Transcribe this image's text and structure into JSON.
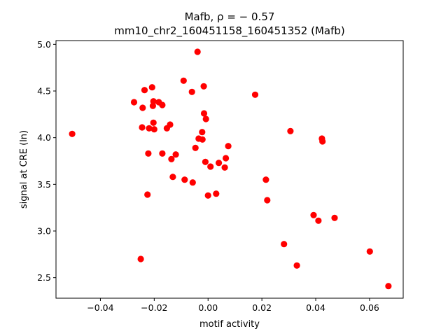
{
  "chart_data": {
    "type": "scatter",
    "title_line1": "Mafb, ρ = − 0.57",
    "title_line2": "mm10_chr2_160451158_160451352 (Mafb)",
    "xlabel": "motif activity",
    "ylabel": "signal at CRE (ln)",
    "xlim": [
      -0.0565,
      0.0725
    ],
    "ylim": [
      2.28,
      5.04
    ],
    "x_ticks": [
      -0.04,
      -0.02,
      0.0,
      0.02,
      0.04,
      0.06
    ],
    "x_tick_labels": [
      "−0.04",
      "−0.02",
      "0.00",
      "0.02",
      "0.04",
      "0.06"
    ],
    "y_ticks": [
      2.5,
      3.0,
      3.5,
      4.0,
      4.5,
      5.0
    ],
    "y_tick_labels": [
      "2.5",
      "3.0",
      "3.5",
      "4.0",
      "4.5",
      "5.0"
    ],
    "point_color": "#ff0000",
    "grid": false,
    "points": [
      {
        "x": -0.0505,
        "y": 4.04
      },
      {
        "x": -0.0275,
        "y": 4.38
      },
      {
        "x": -0.0245,
        "y": 4.11
      },
      {
        "x": -0.0243,
        "y": 4.32
      },
      {
        "x": -0.0236,
        "y": 4.51
      },
      {
        "x": -0.0225,
        "y": 3.39
      },
      {
        "x": -0.0222,
        "y": 3.83
      },
      {
        "x": -0.0219,
        "y": 4.1
      },
      {
        "x": -0.0208,
        "y": 4.54
      },
      {
        "x": -0.0205,
        "y": 4.34
      },
      {
        "x": -0.0203,
        "y": 4.16
      },
      {
        "x": -0.0203,
        "y": 4.39
      },
      {
        "x": -0.02,
        "y": 4.09
      },
      {
        "x": -0.025,
        "y": 2.7
      },
      {
        "x": -0.0183,
        "y": 4.38
      },
      {
        "x": -0.017,
        "y": 4.35
      },
      {
        "x": -0.017,
        "y": 3.83
      },
      {
        "x": -0.0153,
        "y": 4.1
      },
      {
        "x": -0.0141,
        "y": 4.14
      },
      {
        "x": -0.0136,
        "y": 3.77
      },
      {
        "x": -0.0131,
        "y": 3.58
      },
      {
        "x": -0.012,
        "y": 3.82
      },
      {
        "x": -0.0091,
        "y": 4.61
      },
      {
        "x": -0.0087,
        "y": 3.55
      },
      {
        "x": -0.006,
        "y": 4.49
      },
      {
        "x": -0.0057,
        "y": 3.52
      },
      {
        "x": -0.0047,
        "y": 3.89
      },
      {
        "x": -0.0039,
        "y": 4.92
      },
      {
        "x": -0.0035,
        "y": 3.99
      },
      {
        "x": -0.0022,
        "y": 4.06
      },
      {
        "x": -0.0021,
        "y": 3.98
      },
      {
        "x": -0.0016,
        "y": 4.55
      },
      {
        "x": -0.0015,
        "y": 4.26
      },
      {
        "x": -0.001,
        "y": 3.74
      },
      {
        "x": -0.0008,
        "y": 4.2
      },
      {
        "x": 0.0,
        "y": 3.38
      },
      {
        "x": 0.0009,
        "y": 3.69
      },
      {
        "x": 0.003,
        "y": 3.4
      },
      {
        "x": 0.004,
        "y": 3.73
      },
      {
        "x": 0.0062,
        "y": 3.68
      },
      {
        "x": 0.0066,
        "y": 3.78
      },
      {
        "x": 0.0075,
        "y": 3.91
      },
      {
        "x": 0.0175,
        "y": 4.46
      },
      {
        "x": 0.0215,
        "y": 3.55
      },
      {
        "x": 0.022,
        "y": 3.33
      },
      {
        "x": 0.0282,
        "y": 2.86
      },
      {
        "x": 0.0306,
        "y": 4.07
      },
      {
        "x": 0.033,
        "y": 2.63
      },
      {
        "x": 0.0392,
        "y": 3.17
      },
      {
        "x": 0.041,
        "y": 3.11
      },
      {
        "x": 0.0423,
        "y": 3.99
      },
      {
        "x": 0.0425,
        "y": 3.96
      },
      {
        "x": 0.047,
        "y": 3.14
      },
      {
        "x": 0.0601,
        "y": 2.78
      },
      {
        "x": 0.067,
        "y": 2.41
      }
    ]
  }
}
